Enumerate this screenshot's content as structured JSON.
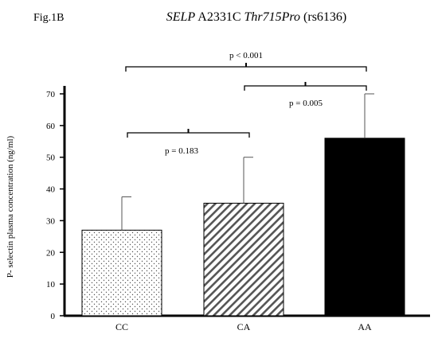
{
  "figure_label": "Fig.1B",
  "title_parts": [
    {
      "text": "SELP",
      "italic": true
    },
    {
      "text": " A2331C ",
      "italic": false
    },
    {
      "text": "Thr715Pro",
      "italic": true
    },
    {
      "text": " (rs6136)",
      "italic": false
    }
  ],
  "chart_data": {
    "type": "bar",
    "categories": [
      "CC",
      "CA",
      "AA"
    ],
    "values": [
      27,
      35.5,
      56
    ],
    "error_upper": [
      37.5,
      50,
      70
    ],
    "ylabel": "P- selectin plasma concentration (ng/ml)",
    "xlabel": "",
    "ylim": [
      0,
      70
    ],
    "yticks": [
      0,
      10,
      20,
      30,
      40,
      50,
      60,
      70
    ],
    "grid": false,
    "bar_fills": [
      "dots",
      "diagonal-stripes",
      "solid-black"
    ],
    "comparisons": [
      {
        "from": 0,
        "to": 2,
        "label": "p < 0.001"
      },
      {
        "from": 1,
        "to": 2,
        "label": "p = 0.005"
      },
      {
        "from": 0,
        "to": 1,
        "label": "p = 0.183"
      }
    ]
  }
}
